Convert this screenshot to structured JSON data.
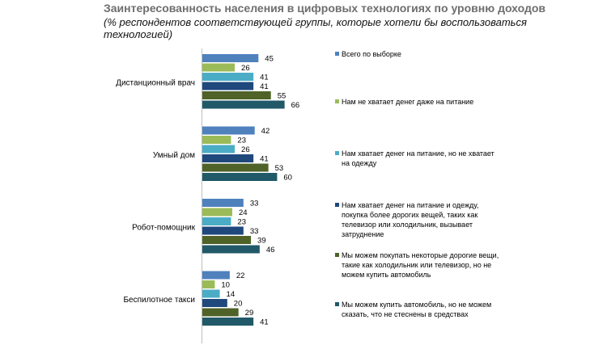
{
  "title": "Заинтересованность населения в цифровых технологиях по уровню доходов",
  "subtitle": "(% респондентов соответствующей группы, которые хотели бы воспользоваться технологией)",
  "chart_data": {
    "type": "bar",
    "orientation": "horizontal",
    "title": "Заинтересованность населения в цифровых технологиях по уровню доходов",
    "subtitle": "(% респондентов соответствующей группы, которые хотели бы воспользоваться технологией)",
    "categories": [
      "Дистанционный врач",
      "Умный дом",
      "Робот-помощник",
      "Беспилотное такси"
    ],
    "xlim": [
      0,
      100
    ],
    "grid": false,
    "legend_position": "right",
    "series": [
      {
        "name": "Всего по выборке",
        "color": "#4f81bd",
        "values": [
          45,
          42,
          33,
          22
        ]
      },
      {
        "name": "Нам не хватает денег даже на питание",
        "color": "#9bbb59",
        "values": [
          26,
          23,
          24,
          10
        ]
      },
      {
        "name": "Нам хватает денег на питание, но не хватает на одежду",
        "color": "#4bacc6",
        "values": [
          41,
          26,
          23,
          14
        ]
      },
      {
        "name": "Нам хватает денег на питание и одежду, покупка более дорогих вещей, таких как телевизор или холодильник, вызывает затруднение",
        "color": "#1f497d",
        "values": [
          41,
          41,
          33,
          20
        ]
      },
      {
        "name": "Мы можем покупать некоторые дорогие вещи, такие как холодильник или телевизор, но не можем купить автомобиль",
        "color": "#4f6228",
        "values": [
          55,
          53,
          39,
          29
        ]
      },
      {
        "name": "Мы можем купить автомобиль, но не можем сказать, что не стеснены в средствах",
        "color": "#215968",
        "values": [
          66,
          60,
          46,
          41
        ]
      }
    ]
  }
}
